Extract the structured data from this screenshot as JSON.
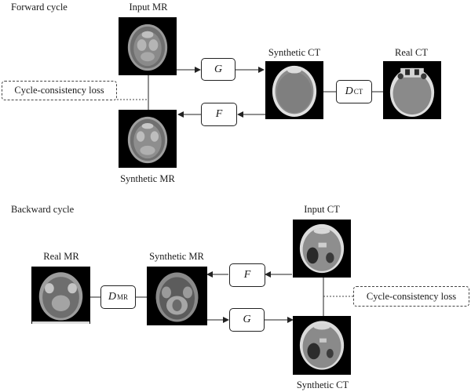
{
  "forward": {
    "section_label": "Forward cycle",
    "input_label": "Input MR",
    "synthetic_ct_label": "Synthetic CT",
    "real_label": "Real CT",
    "synthetic_mr_label": "Synthetic MR",
    "g_label": "G",
    "f_label": "F",
    "disc_base": "D",
    "disc_sub": "CT",
    "loss_label": "Cycle-consistency loss"
  },
  "backward": {
    "section_label": "Backward cycle",
    "input_label": "Input CT",
    "synthetic_mr_label": "Synthetic MR",
    "real_label": "Real MR",
    "synthetic_ct_label": "Synthetic CT",
    "f_label": "F",
    "g_label": "G",
    "disc_base": "D",
    "disc_sub": "MR",
    "loss_label": "Cycle-consistency loss"
  },
  "colors": {
    "line": "#222222",
    "scan_background": "#000000",
    "loss_border": "#444444"
  }
}
